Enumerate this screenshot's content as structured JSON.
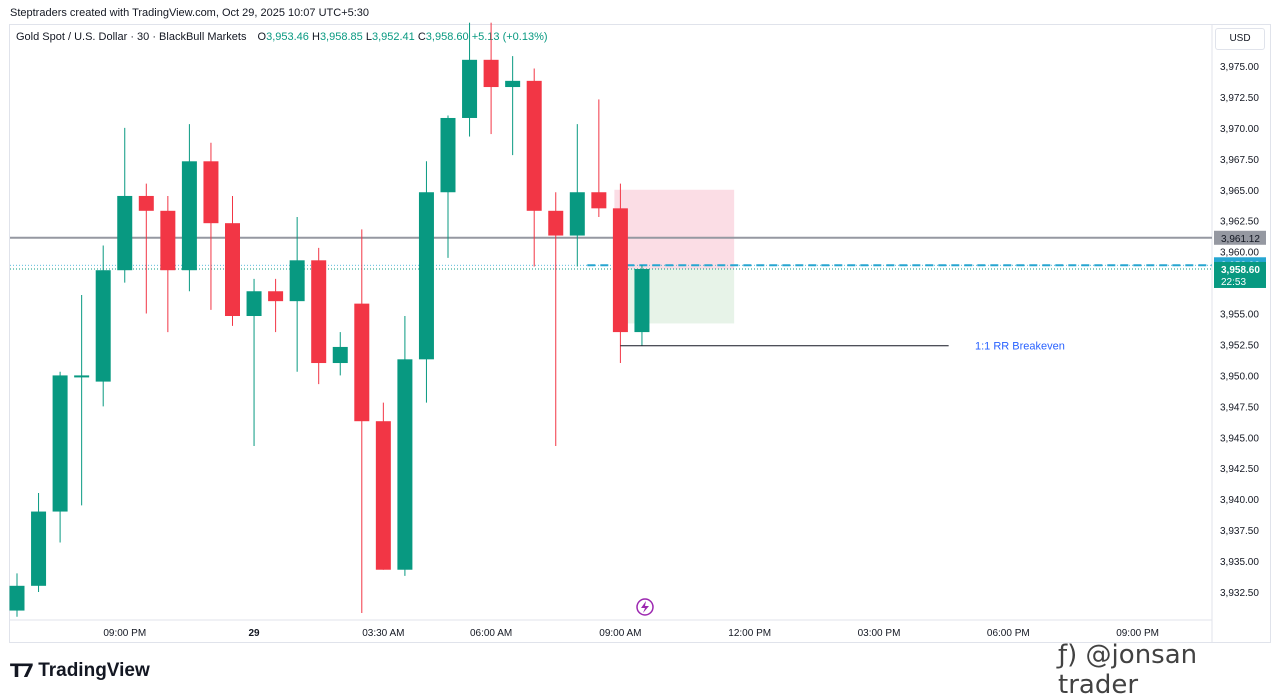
{
  "caption": "Steptraders created with TradingView.com, Oct 29, 2025 10:07 UTC+5:30",
  "legend": {
    "symbol": "Gold Spot / U.S. Dollar · 30 · BlackBull Markets",
    "o_label": "O",
    "o_value": "3,953.46",
    "h_label": "H",
    "h_value": "3,958.85",
    "l_label": "L",
    "l_value": "3,952.41",
    "c_label": "C",
    "c_value": "3,958.60",
    "change": "+5.13 (+0.13%)"
  },
  "currency": "USD",
  "logo_text": "TradingView",
  "watermark": "ƒ) @jonsan trader",
  "colors": {
    "up": "#089981",
    "down": "#f23645",
    "text": "#131722",
    "grid_axis": "#e0e3eb",
    "hline": "#9598a1",
    "dash": "#26a6d1",
    "target_fill": "#e4f2e6",
    "stop_fill": "#fbd9e2"
  },
  "chart_data": {
    "type": "candlestick",
    "ylim": [
      3931.0,
      3978.5
    ],
    "yticks": [
      "3,932.50",
      "3,935.00",
      "3,937.50",
      "3,940.00",
      "3,942.50",
      "3,945.00",
      "3,947.50",
      "3,950.00",
      "3,952.50",
      "3,955.00",
      "3,957.50",
      "3,960.00",
      "3,962.50",
      "3,965.00",
      "3,967.50",
      "3,970.00",
      "3,972.50",
      "3,975.00"
    ],
    "ytick_values": [
      3932.5,
      3935,
      3937.5,
      3940,
      3942.5,
      3945,
      3947.5,
      3950,
      3952.5,
      3955,
      3957.5,
      3960,
      3962.5,
      3965,
      3967.5,
      3970,
      3972.5,
      3975
    ],
    "xticks": [
      {
        "label": "09:00 PM",
        "i": 5,
        "bold": false
      },
      {
        "label": "29",
        "i": 11,
        "bold": true
      },
      {
        "label": "03:30 AM",
        "i": 17,
        "bold": false
      },
      {
        "label": "06:00 AM",
        "i": 22,
        "bold": false
      },
      {
        "label": "09:00 AM",
        "i": 28,
        "bold": false
      },
      {
        "label": "12:00 PM",
        "i": 34,
        "bold": false
      },
      {
        "label": "03:00 PM",
        "i": 40,
        "bold": false
      },
      {
        "label": "06:00 PM",
        "i": 46,
        "bold": false
      },
      {
        "label": "09:00 PM",
        "i": 52,
        "bold": false
      }
    ],
    "candles": [
      {
        "o": 3931,
        "h": 3934,
        "l": 3930.5,
        "c": 3933
      },
      {
        "o": 3933,
        "h": 3940.5,
        "l": 3932.5,
        "c": 3939
      },
      {
        "o": 3939,
        "h": 3950.3,
        "l": 3936.5,
        "c": 3950
      },
      {
        "o": 3950,
        "h": 3956.5,
        "l": 3939.5,
        "c": 3950
      },
      {
        "o": 3949.5,
        "h": 3960.5,
        "l": 3947.5,
        "c": 3958.5
      },
      {
        "o": 3958.5,
        "h": 3970,
        "l": 3957.5,
        "c": 3964.5
      },
      {
        "o": 3964.5,
        "h": 3965.5,
        "l": 3955,
        "c": 3963.3
      },
      {
        "o": 3963.3,
        "h": 3964.5,
        "l": 3953.5,
        "c": 3958.5
      },
      {
        "o": 3958.5,
        "h": 3970.3,
        "l": 3956.8,
        "c": 3967.3
      },
      {
        "o": 3967.3,
        "h": 3968.8,
        "l": 3955.3,
        "c": 3962.3
      },
      {
        "o": 3962.3,
        "h": 3964.5,
        "l": 3954,
        "c": 3954.8
      },
      {
        "o": 3954.8,
        "h": 3957.8,
        "l": 3944.3,
        "c": 3956.8
      },
      {
        "o": 3956.8,
        "h": 3957.8,
        "l": 3953.5,
        "c": 3956
      },
      {
        "o": 3956,
        "h": 3962.8,
        "l": 3950.3,
        "c": 3959.3
      },
      {
        "o": 3959.3,
        "h": 3960.3,
        "l": 3949.3,
        "c": 3951
      },
      {
        "o": 3951,
        "h": 3953.5,
        "l": 3950,
        "c": 3952.3
      },
      {
        "o": 3955.8,
        "h": 3961.8,
        "l": 3930.8,
        "c": 3946.3
      },
      {
        "o": 3946.3,
        "h": 3947.8,
        "l": 3934.3,
        "c": 3934.3
      },
      {
        "o": 3934.3,
        "h": 3954.8,
        "l": 3933.8,
        "c": 3951.3
      },
      {
        "o": 3951.3,
        "h": 3967.3,
        "l": 3947.8,
        "c": 3964.8
      },
      {
        "o": 3964.8,
        "h": 3971,
        "l": 3959.5,
        "c": 3970.8
      },
      {
        "o": 3970.8,
        "h": 3978.5,
        "l": 3969.3,
        "c": 3975.5
      },
      {
        "o": 3975.5,
        "h": 3978.5,
        "l": 3969.5,
        "c": 3973.3
      },
      {
        "o": 3973.3,
        "h": 3975.8,
        "l": 3967.8,
        "c": 3973.8
      },
      {
        "o": 3973.8,
        "h": 3974.8,
        "l": 3958.8,
        "c": 3963.3
      },
      {
        "o": 3963.3,
        "h": 3964.8,
        "l": 3944.3,
        "c": 3961.3
      },
      {
        "o": 3961.3,
        "h": 3970.3,
        "l": 3958.8,
        "c": 3964.8
      },
      {
        "o": 3964.8,
        "h": 3972.3,
        "l": 3962.8,
        "c": 3963.5
      },
      {
        "o": 3963.5,
        "h": 3965.5,
        "l": 3951,
        "c": 3953.5
      },
      {
        "o": 3953.5,
        "h": 3958.9,
        "l": 3952.4,
        "c": 3958.6
      }
    ],
    "hline": {
      "value": 3961.12,
      "label": "3,961.12"
    },
    "current": {
      "value": 3958.6,
      "label": "3,958.60",
      "countdown": "22:53"
    },
    "dashed": {
      "value": 3958.98,
      "label": "3,958.98"
    },
    "position_tool": {
      "entry": 3958.6,
      "stop": 3965.0,
      "target": 3954.2,
      "from_i": 28,
      "to_i": 33
    },
    "breakeven": {
      "value": 3952.4,
      "label": "1:1 RR Breakeven",
      "from_i": 28,
      "to_i": 43
    }
  }
}
